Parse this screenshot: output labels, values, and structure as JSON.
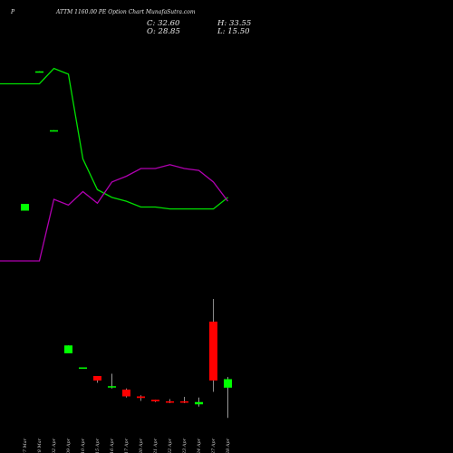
{
  "header": {
    "symbol": "P",
    "title": "ATTM 1160.00  PE Option  Chart MunafaSutra.com",
    "close": "C: 32.60",
    "open": "O: 28.85",
    "high": "H: 33.55",
    "low": "L: 15.50"
  },
  "colors": {
    "up": "#00ff00",
    "down": "#ff0000",
    "line_green": "#00e000",
    "line_magenta": "#b000b0",
    "background": "#000000"
  },
  "chart_data": {
    "type": "candlestick",
    "dates": [
      "27 Mar",
      "28 Mar",
      "02 Apr",
      "09 Apr",
      "10 Apr",
      "15 Apr",
      "16 Apr",
      "17 Apr",
      "20 Apr",
      "21 Apr",
      "22 Apr",
      "23 Apr",
      "24 Apr",
      "27 Apr",
      "28 Apr"
    ],
    "candles": [
      {
        "open": 107,
        "close": 110,
        "high": 110,
        "low": 107,
        "dir": "up"
      },
      {
        "open": 168,
        "close": 168.5,
        "high": 168.5,
        "low": 168,
        "dir": "up"
      },
      {
        "open": 142,
        "close": 142.5,
        "high": 142.5,
        "low": 142,
        "dir": "up"
      },
      {
        "open": 44,
        "close": 47.5,
        "high": 47.5,
        "low": 44,
        "dir": "up"
      },
      {
        "open": 37.6,
        "close": 37.8,
        "high": 37.8,
        "low": 37.6,
        "dir": "up"
      },
      {
        "open": 34,
        "close": 32,
        "high": 34,
        "low": 31,
        "dir": "down"
      },
      {
        "open": 29,
        "close": 29.5,
        "high": 35,
        "low": 28.5,
        "dir": "up"
      },
      {
        "open": 28,
        "close": 25,
        "high": 28.5,
        "low": 24.5,
        "dir": "down"
      },
      {
        "open": 25,
        "close": 24.3,
        "high": 25.5,
        "low": 23,
        "dir": "down"
      },
      {
        "open": 23.5,
        "close": 22.8,
        "high": 23.5,
        "low": 22.5,
        "dir": "down"
      },
      {
        "open": 22.8,
        "close": 22.4,
        "high": 23.8,
        "low": 22,
        "dir": "down"
      },
      {
        "open": 22.8,
        "close": 22.4,
        "high": 24.8,
        "low": 22,
        "dir": "down"
      },
      {
        "open": 21.5,
        "close": 22.5,
        "high": 24.5,
        "low": 20.5,
        "dir": "up"
      },
      {
        "open": 58,
        "close": 32,
        "high": 68,
        "low": 27,
        "dir": "down"
      },
      {
        "open": 28.85,
        "close": 32.6,
        "high": 33.55,
        "low": 15.5,
        "dir": "up"
      }
    ],
    "series": [
      {
        "color": "green",
        "values": [
          180,
          180,
          188,
          185,
          141,
          125,
          121,
          119,
          116,
          116,
          115,
          115,
          115,
          115,
          121
        ]
      },
      {
        "color": "magenta",
        "values": [
          88,
          88,
          120,
          117,
          124,
          118,
          129,
          132,
          136,
          136,
          138,
          136,
          135,
          129,
          119
        ]
      }
    ]
  }
}
